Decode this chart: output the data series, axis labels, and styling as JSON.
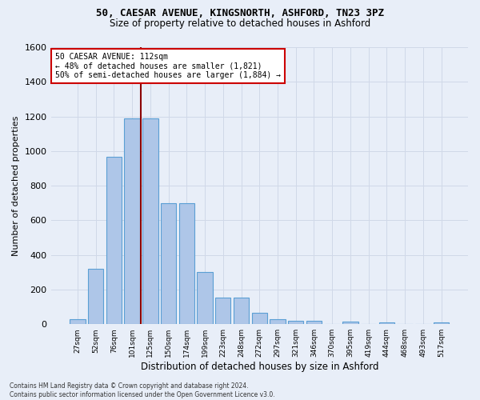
{
  "title_line1": "50, CAESAR AVENUE, KINGSNORTH, ASHFORD, TN23 3PZ",
  "title_line2": "Size of property relative to detached houses in Ashford",
  "xlabel": "Distribution of detached houses by size in Ashford",
  "ylabel": "Number of detached properties",
  "footnote": "Contains HM Land Registry data © Crown copyright and database right 2024.\nContains public sector information licensed under the Open Government Licence v3.0.",
  "annotation_line1": "50 CAESAR AVENUE: 112sqm",
  "annotation_line2": "← 48% of detached houses are smaller (1,821)",
  "annotation_line3": "50% of semi-detached houses are larger (1,884) →",
  "bar_labels": [
    "27sqm",
    "52sqm",
    "76sqm",
    "101sqm",
    "125sqm",
    "150sqm",
    "174sqm",
    "199sqm",
    "223sqm",
    "248sqm",
    "272sqm",
    "297sqm",
    "321sqm",
    "346sqm",
    "370sqm",
    "395sqm",
    "419sqm",
    "444sqm",
    "468sqm",
    "493sqm",
    "517sqm"
  ],
  "bar_values": [
    30,
    320,
    965,
    1190,
    1190,
    700,
    700,
    300,
    155,
    155,
    65,
    30,
    20,
    20,
    0,
    15,
    0,
    10,
    0,
    0,
    10
  ],
  "bar_color": "#aec6e8",
  "bar_edge_color": "#5a9fd4",
  "vline_x": 3.5,
  "vline_color": "#8b0000",
  "ylim": [
    0,
    1600
  ],
  "yticks": [
    0,
    200,
    400,
    600,
    800,
    1000,
    1200,
    1400,
    1600
  ],
  "grid_color": "#d0d8e8",
  "background_color": "#e8eef8",
  "annotation_box_color": "#ffffff",
  "annotation_box_edge": "#cc0000",
  "title_fontsize": 9,
  "subtitle_fontsize": 8
}
